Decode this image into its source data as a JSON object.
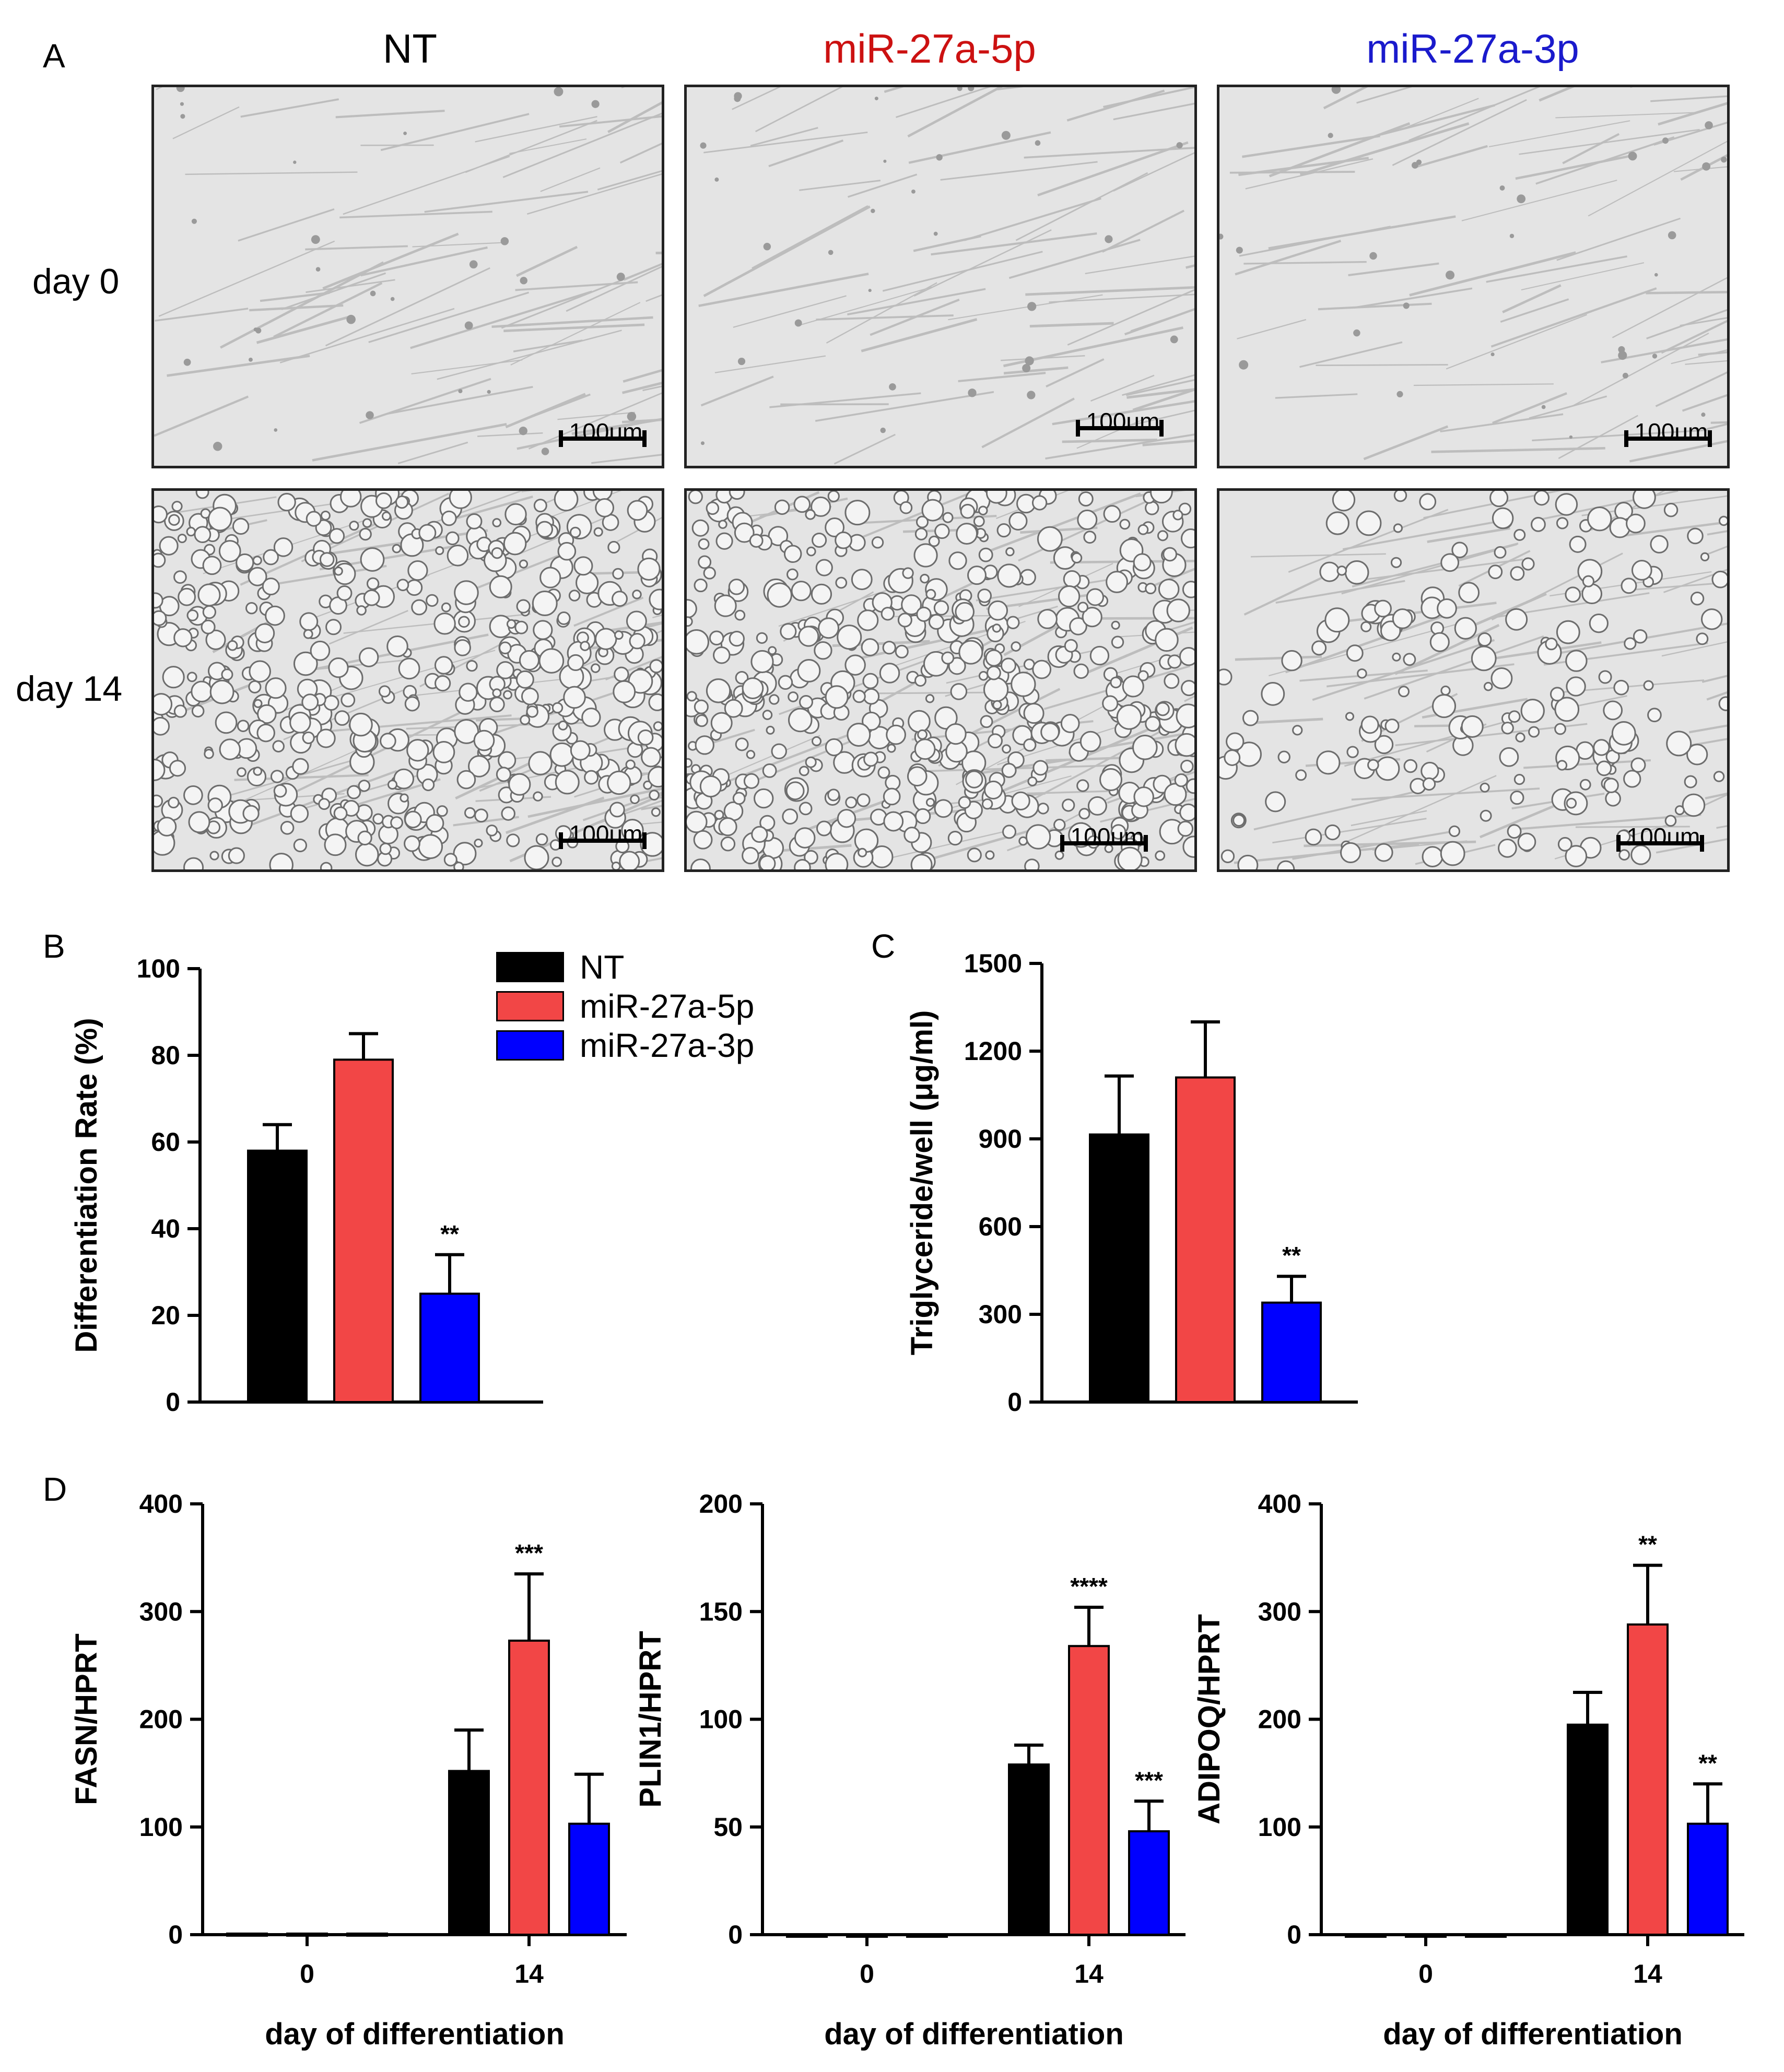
{
  "panels": {
    "A": "A",
    "B": "B",
    "C": "C",
    "D": "D"
  },
  "colors": {
    "NT": "#000000",
    "miR-27a-5p": "#f24646",
    "miR-27a-3p": "#0000ff",
    "header_5p": "#cc1111",
    "header_3p": "#1a1acc"
  },
  "micrographs": {
    "column_headers": [
      "NT",
      "miR-27a-5p",
      "miR-27a-3p"
    ],
    "row_headers": [
      "day 0",
      "day 14"
    ],
    "scale_bar_label": "100um"
  },
  "legend": {
    "items": [
      {
        "label": "NT",
        "color": "#000000"
      },
      {
        "label": "miR-27a-5p",
        "color": "#f24646"
      },
      {
        "label": "miR-27a-3p",
        "color": "#0000ff"
      }
    ]
  },
  "chart_data": [
    {
      "id": "B",
      "type": "bar",
      "title": "",
      "xlabel": "",
      "ylabel": "Differentiation Rate (%)",
      "ylim": [
        0,
        100
      ],
      "yticks": [
        0,
        20,
        40,
        60,
        80,
        100
      ],
      "categories": [
        "NT",
        "miR-27a-5p",
        "miR-27a-3p"
      ],
      "values": [
        58,
        79,
        25
      ],
      "errors": [
        6,
        6,
        9
      ],
      "significance": [
        "",
        "",
        "**"
      ]
    },
    {
      "id": "C",
      "type": "bar",
      "title": "",
      "xlabel": "",
      "ylabel": "Triglyceride/well (μg/ml)",
      "ylim": [
        0,
        1500
      ],
      "yticks": [
        0,
        300,
        600,
        900,
        1200,
        1500
      ],
      "categories": [
        "NT",
        "miR-27a-5p",
        "miR-27a-3p"
      ],
      "values": [
        915,
        1110,
        340
      ],
      "errors": [
        200,
        190,
        90
      ],
      "significance": [
        "",
        "",
        "**"
      ]
    },
    {
      "id": "D1",
      "type": "bar",
      "title": "",
      "xlabel": "day of differentiation",
      "ylabel": "FASN/HPRT",
      "ylim": [
        0,
        400
      ],
      "yticks": [
        0,
        100,
        200,
        300,
        400
      ],
      "categories": [
        "0",
        "14"
      ],
      "series": [
        {
          "name": "NT",
          "values": [
            1,
            152
          ],
          "errors": [
            0,
            38
          ],
          "significance": [
            "",
            ""
          ]
        },
        {
          "name": "miR-27a-5p",
          "values": [
            1,
            273
          ],
          "errors": [
            0,
            62
          ],
          "significance": [
            "",
            "***"
          ]
        },
        {
          "name": "miR-27a-3p",
          "values": [
            1,
            103
          ],
          "errors": [
            0,
            46
          ],
          "significance": [
            "",
            ""
          ]
        }
      ]
    },
    {
      "id": "D2",
      "type": "bar",
      "title": "",
      "xlabel": "day of differentiation",
      "ylabel": "PLIN1/HPRT",
      "ylim": [
        0,
        200
      ],
      "yticks": [
        0,
        50,
        100,
        150,
        200
      ],
      "categories": [
        "0",
        "14"
      ],
      "series": [
        {
          "name": "NT",
          "values": [
            0,
            79
          ],
          "errors": [
            0,
            9
          ],
          "significance": [
            "",
            ""
          ]
        },
        {
          "name": "miR-27a-5p",
          "values": [
            0,
            134
          ],
          "errors": [
            0,
            18
          ],
          "significance": [
            "",
            "****"
          ]
        },
        {
          "name": "miR-27a-3p",
          "values": [
            0,
            48
          ],
          "errors": [
            0,
            14
          ],
          "significance": [
            "",
            "***"
          ]
        }
      ]
    },
    {
      "id": "D3",
      "type": "bar",
      "title": "",
      "xlabel": "day of differentiation",
      "ylabel": "ADIPOQ/HPRT",
      "ylim": [
        0,
        400
      ],
      "yticks": [
        0,
        100,
        200,
        300,
        400
      ],
      "categories": [
        "0",
        "14"
      ],
      "series": [
        {
          "name": "NT",
          "values": [
            0,
            195
          ],
          "errors": [
            0,
            30
          ],
          "significance": [
            "",
            ""
          ]
        },
        {
          "name": "miR-27a-5p",
          "values": [
            0,
            288
          ],
          "errors": [
            0,
            55
          ],
          "significance": [
            "",
            "**"
          ]
        },
        {
          "name": "miR-27a-3p",
          "values": [
            0,
            103
          ],
          "errors": [
            0,
            37
          ],
          "significance": [
            "",
            "**"
          ]
        }
      ]
    }
  ]
}
